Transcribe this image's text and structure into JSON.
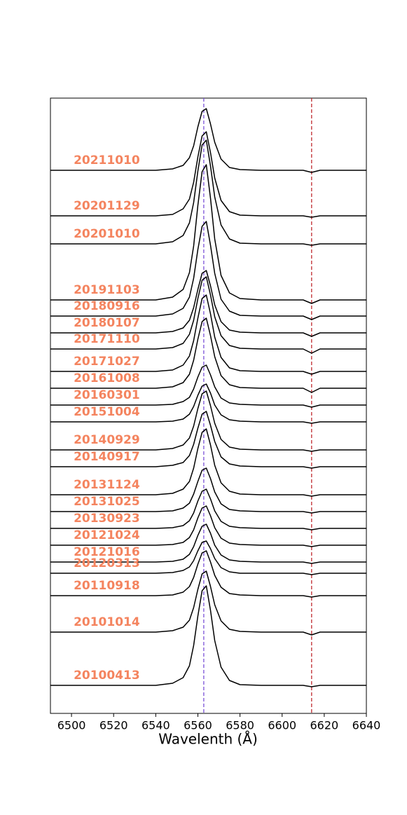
{
  "chart_data": {
    "type": "line",
    "xlabel": "Wavelenth (Å)",
    "xlim": [
      6490,
      6640
    ],
    "xticks": [
      6500,
      6520,
      6540,
      6560,
      6580,
      6600,
      6620,
      6640
    ],
    "ylim": [
      0,
      878
    ],
    "label_color": "#f4845f",
    "vlines": [
      {
        "x": 6562.8,
        "color": "#7b52d8",
        "linestyle": "dashed"
      },
      {
        "x": 6614,
        "color": "#c0282d",
        "linestyle": "dashed"
      }
    ],
    "x": [
      6490,
      6500,
      6510,
      6520,
      6530,
      6540,
      6548,
      6553,
      6556,
      6558,
      6560,
      6562,
      6564,
      6566,
      6568,
      6571,
      6575,
      6580,
      6590,
      6600,
      6610,
      6614,
      6618,
      6630,
      6640
    ],
    "series": [
      {
        "name": "20211010",
        "color": "#000000",
        "values": [
          775,
          775,
          775,
          775,
          775,
          775,
          777,
          782,
          793,
          810,
          837,
          859,
          863,
          841,
          815,
          791,
          779,
          776,
          775,
          775,
          775,
          772,
          775,
          775,
          775
        ]
      },
      {
        "name": "20201129",
        "color": "#000000",
        "values": [
          710,
          710,
          710,
          710,
          710,
          710,
          712,
          720,
          734,
          758,
          794,
          824,
          830,
          800,
          764,
          732,
          716,
          711,
          710,
          710,
          710,
          708,
          710,
          710,
          710
        ]
      },
      {
        "name": "20201010",
        "color": "#000000",
        "values": [
          670,
          670,
          670,
          670,
          670,
          670,
          673,
          682,
          700,
          729,
          774,
          811,
          818,
          781,
          737,
          697,
          677,
          671,
          670,
          670,
          670,
          668,
          670,
          670,
          670
        ]
      },
      {
        "name": "20191103",
        "color": "#000000",
        "values": [
          590,
          590,
          590,
          590,
          590,
          590,
          594,
          605,
          629,
          667,
          725,
          773,
          783,
          735,
          677,
          625,
          600,
          592,
          590,
          590,
          590,
          585,
          590,
          590,
          590
        ]
      },
      {
        "name": "20180916",
        "color": "#000000",
        "values": [
          567,
          567,
          567,
          567,
          567,
          567,
          570,
          578,
          594,
          621,
          662,
          695,
          702,
          668,
          628,
          591,
          574,
          568,
          567,
          567,
          567,
          562,
          567,
          567,
          567
        ]
      },
      {
        "name": "20180107",
        "color": "#000000",
        "values": [
          543,
          543,
          543,
          543,
          543,
          543,
          545,
          550,
          561,
          579,
          605,
          628,
          632,
          610,
          583,
          559,
          547,
          544,
          543,
          543,
          543,
          538,
          543,
          543,
          543
        ]
      },
      {
        "name": "20171110",
        "color": "#000000",
        "values": [
          520,
          520,
          520,
          520,
          520,
          520,
          522,
          528,
          541,
          561,
          592,
          618,
          623,
          597,
          566,
          539,
          525,
          521,
          520,
          520,
          520,
          514,
          520,
          520,
          520
        ]
      },
      {
        "name": "20171027",
        "color": "#000000",
        "values": [
          488,
          488,
          488,
          488,
          488,
          488,
          490,
          497,
          510,
          532,
          564,
          592,
          597,
          570,
          537,
          508,
          493,
          489,
          488,
          488,
          488,
          484,
          488,
          488,
          488
        ]
      },
      {
        "name": "20161008",
        "color": "#000000",
        "values": [
          464,
          464,
          464,
          464,
          464,
          464,
          466,
          472,
          484,
          504,
          534,
          559,
          564,
          539,
          509,
          482,
          469,
          465,
          464,
          464,
          464,
          458,
          464,
          464,
          464
        ]
      },
      {
        "name": "20160301",
        "color": "#000000",
        "values": [
          440,
          440,
          440,
          440,
          440,
          440,
          441,
          445,
          451,
          463,
          480,
          494,
          497,
          483,
          466,
          450,
          443,
          441,
          440,
          440,
          440,
          437,
          440,
          440,
          440
        ]
      },
      {
        "name": "20151004",
        "color": "#000000",
        "values": [
          416,
          416,
          416,
          416,
          416,
          416,
          417,
          420,
          427,
          438,
          454,
          467,
          470,
          457,
          440,
          426,
          419,
          417,
          416,
          416,
          416,
          414,
          416,
          416,
          416
        ]
      },
      {
        "name": "20140929",
        "color": "#000000",
        "values": [
          376,
          376,
          376,
          376,
          376,
          376,
          378,
          383,
          393,
          410,
          435,
          456,
          460,
          439,
          414,
          391,
          380,
          377,
          376,
          376,
          376,
          374,
          376,
          376,
          376
        ]
      },
      {
        "name": "20140917",
        "color": "#000000",
        "values": [
          352,
          352,
          352,
          352,
          352,
          352,
          354,
          358,
          368,
          384,
          407,
          427,
          431,
          411,
          388,
          366,
          356,
          353,
          352,
          352,
          352,
          350,
          352,
          352,
          352
        ]
      },
      {
        "name": "20131124",
        "color": "#000000",
        "values": [
          312,
          312,
          312,
          312,
          312,
          312,
          314,
          320,
          331,
          350,
          378,
          401,
          406,
          383,
          354,
          329,
          317,
          313,
          312,
          312,
          312,
          310,
          312,
          312,
          312
        ]
      },
      {
        "name": "20131025",
        "color": "#000000",
        "values": [
          288,
          288,
          288,
          288,
          288,
          288,
          289,
          293,
          300,
          313,
          331,
          347,
          350,
          335,
          316,
          299,
          291,
          289,
          288,
          288,
          288,
          286,
          288,
          288,
          288
        ]
      },
      {
        "name": "20130923",
        "color": "#000000",
        "values": [
          264,
          264,
          264,
          264,
          264,
          264,
          265,
          268,
          275,
          286,
          303,
          317,
          320,
          306,
          289,
          274,
          267,
          265,
          264,
          264,
          264,
          262,
          264,
          264,
          264
        ]
      },
      {
        "name": "20121024",
        "color": "#000000",
        "values": [
          240,
          240,
          240,
          240,
          240,
          240,
          241,
          244,
          251,
          262,
          279,
          293,
          296,
          282,
          265,
          250,
          243,
          241,
          240,
          240,
          240,
          238,
          240,
          240,
          240
        ]
      },
      {
        "name": "20121016",
        "color": "#000000",
        "values": [
          216,
          216,
          216,
          216,
          216,
          216,
          217,
          220,
          227,
          238,
          254,
          267,
          270,
          257,
          240,
          226,
          219,
          217,
          216,
          216,
          216,
          214,
          216,
          216,
          216
        ]
      },
      {
        "name": "20120313",
        "color": "#000000",
        "values": [
          200,
          200,
          200,
          200,
          200,
          200,
          201,
          204,
          209,
          218,
          232,
          244,
          246,
          235,
          221,
          208,
          202,
          200,
          200,
          200,
          200,
          198,
          200,
          200,
          200
        ]
      },
      {
        "name": "20110918",
        "color": "#000000",
        "values": [
          168,
          168,
          168,
          168,
          168,
          168,
          169,
          173,
          181,
          194,
          213,
          229,
          232,
          216,
          197,
          180,
          171,
          169,
          168,
          168,
          168,
          166,
          168,
          168,
          168
        ]
      },
      {
        "name": "20101014",
        "color": "#000000",
        "values": [
          116,
          116,
          116,
          116,
          116,
          116,
          118,
          123,
          133,
          151,
          177,
          199,
          203,
          181,
          155,
          132,
          120,
          117,
          116,
          116,
          116,
          112,
          116,
          116,
          116
        ]
      },
      {
        "name": "20100413",
        "color": "#000000",
        "values": [
          40,
          40,
          40,
          40,
          40,
          40,
          43,
          51,
          68,
          97,
          139,
          175,
          182,
          147,
          104,
          66,
          47,
          41,
          40,
          40,
          40,
          38,
          40,
          40,
          40
        ]
      }
    ]
  }
}
